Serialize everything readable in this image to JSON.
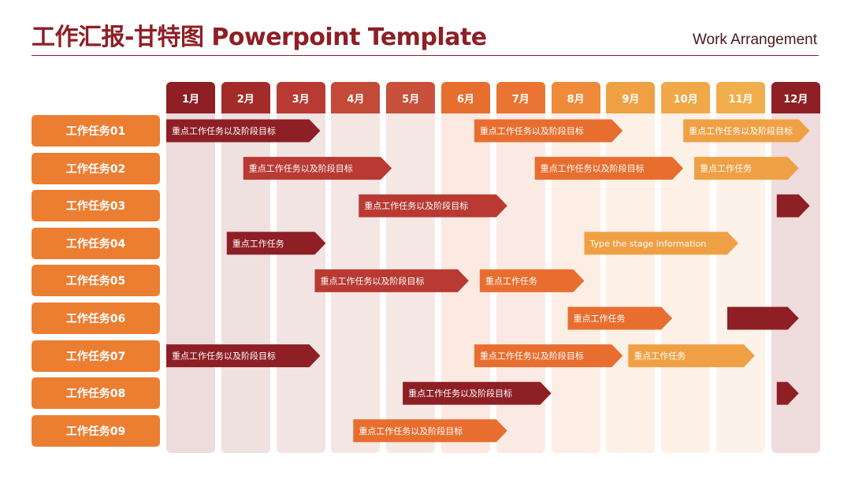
{
  "header": {
    "title": "工作汇报-甘特图 Powerpoint Template",
    "subtitle": "Work Arrangement"
  },
  "colors": {
    "dark_red": "#8e1f25",
    "red": "#b83a33",
    "orange": "#e86e30",
    "light_orange": "#f0a044",
    "task_label": "#ec7e32"
  },
  "chart_data": {
    "type": "gantt",
    "months": [
      "1月",
      "2月",
      "3月",
      "4月",
      "5月",
      "6月",
      "7月",
      "8月",
      "9月",
      "10月",
      "11月",
      "12月"
    ],
    "tasks": [
      "工作任务01",
      "工作任务02",
      "工作任务03",
      "工作任务04",
      "工作任务05",
      "工作任务06",
      "工作任务07",
      "工作任务08",
      "工作任务09"
    ],
    "bars": [
      {
        "task": 0,
        "start": 1,
        "end": 3.8,
        "label": "重点工作任务以及阶段目标",
        "color": "dark_red"
      },
      {
        "task": 0,
        "start": 6.6,
        "end": 9.3,
        "label": "重点工作任务以及阶段目标",
        "color": "orange"
      },
      {
        "task": 0,
        "start": 10.4,
        "end": 12.7,
        "label": "重点工作任务以及阶段目标",
        "color": "light_orange"
      },
      {
        "task": 1,
        "start": 2.4,
        "end": 5.1,
        "label": "重点工作任务以及阶段目标",
        "color": "red"
      },
      {
        "task": 1,
        "start": 7.7,
        "end": 10.4,
        "label": "重点工作任务以及阶段目标",
        "color": "orange"
      },
      {
        "task": 1,
        "start": 10.6,
        "end": 12.5,
        "label": "重点工作任务",
        "color": "light_orange"
      },
      {
        "task": 2,
        "start": 4.5,
        "end": 7.2,
        "label": "重点工作任务以及阶段目标",
        "color": "red"
      },
      {
        "task": 2,
        "start": 12.1,
        "end": 12.7,
        "label": "",
        "color": "dark_red"
      },
      {
        "task": 3,
        "start": 2.1,
        "end": 3.9,
        "label": "重点工作任务",
        "color": "dark_red"
      },
      {
        "task": 3,
        "start": 8.6,
        "end": 11.4,
        "label": "Type the stage information",
        "color": "light_orange"
      },
      {
        "task": 4,
        "start": 3.7,
        "end": 6.5,
        "label": "重点工作任务以及阶段目标",
        "color": "red"
      },
      {
        "task": 4,
        "start": 6.7,
        "end": 8.6,
        "label": "重点工作任务",
        "color": "orange"
      },
      {
        "task": 5,
        "start": 8.3,
        "end": 10.2,
        "label": "重点工作任务",
        "color": "orange"
      },
      {
        "task": 5,
        "start": 11.2,
        "end": 12.5,
        "label": "",
        "color": "dark_red"
      },
      {
        "task": 6,
        "start": 1,
        "end": 3.8,
        "label": "重点工作任务以及阶段目标",
        "color": "dark_red"
      },
      {
        "task": 6,
        "start": 6.6,
        "end": 9.3,
        "label": "重点工作任务以及阶段目标",
        "color": "orange"
      },
      {
        "task": 6,
        "start": 9.4,
        "end": 11.7,
        "label": "重点工作任务",
        "color": "light_orange"
      },
      {
        "task": 7,
        "start": 5.3,
        "end": 8,
        "label": "重点工作任务以及阶段目标",
        "color": "dark_red"
      },
      {
        "task": 7,
        "start": 12.1,
        "end": 12.5,
        "label": "",
        "color": "dark_red"
      },
      {
        "task": 8,
        "start": 4.4,
        "end": 7.2,
        "label": "重点工作任务以及阶段目标",
        "color": "orange"
      }
    ]
  }
}
